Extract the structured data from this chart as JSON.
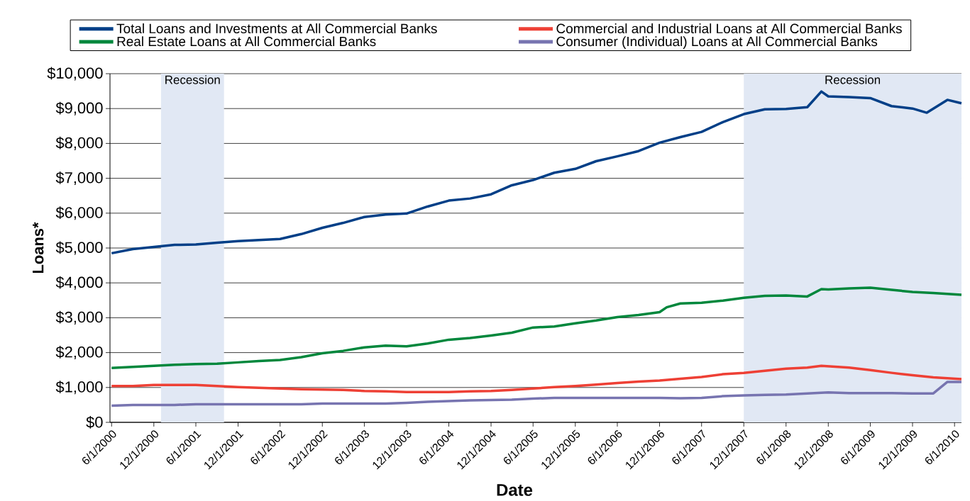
{
  "chart_data": {
    "type": "line",
    "xlabel": "Date",
    "ylabel": "Loans*",
    "xlim": [
      "2000-05-25",
      "2010-07-01"
    ],
    "xticks": [
      {
        "value": "2000-06-01",
        "label": "6/1/2000"
      },
      {
        "value": "2000-12-01",
        "label": "12/1/2000"
      },
      {
        "value": "2001-06-01",
        "label": "6/1/2001"
      },
      {
        "value": "2001-12-01",
        "label": "12/1/2001"
      },
      {
        "value": "2002-06-01",
        "label": "6/1/2002"
      },
      {
        "value": "2002-12-01",
        "label": "12/1/2002"
      },
      {
        "value": "2003-06-01",
        "label": "6/1/2003"
      },
      {
        "value": "2003-12-01",
        "label": "12/1/2003"
      },
      {
        "value": "2004-06-01",
        "label": "6/1/2004"
      },
      {
        "value": "2004-12-01",
        "label": "12/1/2004"
      },
      {
        "value": "2005-06-01",
        "label": "6/1/2005"
      },
      {
        "value": "2005-12-01",
        "label": "12/1/2005"
      },
      {
        "value": "2006-06-01",
        "label": "6/1/2006"
      },
      {
        "value": "2006-12-01",
        "label": "12/1/2006"
      },
      {
        "value": "2007-06-01",
        "label": "6/1/2007"
      },
      {
        "value": "2007-12-01",
        "label": "12/1/2007"
      },
      {
        "value": "2008-06-01",
        "label": "6/1/2008"
      },
      {
        "value": "2008-12-01",
        "label": "12/1/2008"
      },
      {
        "value": "2009-06-01",
        "label": "6/1/2009"
      },
      {
        "value": "2009-12-01",
        "label": "12/1/2009"
      },
      {
        "value": "2010-06-01",
        "label": "6/1/2010"
      }
    ],
    "ylim": [
      0,
      10000
    ],
    "yticks": [
      {
        "value": 0,
        "label": "$0"
      },
      {
        "value": 1000,
        "label": "$1,000"
      },
      {
        "value": 2000,
        "label": "$2,000"
      },
      {
        "value": 3000,
        "label": "$3,000"
      },
      {
        "value": 4000,
        "label": "$4,000"
      },
      {
        "value": 5000,
        "label": "$5,000"
      },
      {
        "value": 6000,
        "label": "$6,000"
      },
      {
        "value": 7000,
        "label": "$7,000"
      },
      {
        "value": 8000,
        "label": "$8,000"
      },
      {
        "value": 9000,
        "label": "$9,000"
      },
      {
        "value": 10000,
        "label": "$10,000"
      }
    ],
    "grid": "y",
    "legend": "top",
    "bands": [
      {
        "axis": "x",
        "from": "2001-01",
        "to": "2001-10",
        "label": "Recession",
        "color": "#e1e8f4"
      },
      {
        "axis": "x",
        "from": "2007-12",
        "to": "2010-07",
        "label": "Recession",
        "color": "#e1e8f4"
      }
    ],
    "series": [
      {
        "name": "Total Loans and Investments at All Commercial Banks",
        "color": "#003f87",
        "x": [
          "2000-06",
          "2000-09",
          "2000-12",
          "2001-03",
          "2001-06",
          "2001-09",
          "2001-12",
          "2002-03",
          "2002-06",
          "2002-09",
          "2002-12",
          "2003-03",
          "2003-06",
          "2003-09",
          "2003-12",
          "2004-03",
          "2004-06",
          "2004-09",
          "2004-12",
          "2005-03",
          "2005-06",
          "2005-09",
          "2005-12",
          "2006-03",
          "2006-06",
          "2006-09",
          "2006-12",
          "2007-03",
          "2007-06",
          "2007-09",
          "2007-12",
          "2008-03",
          "2008-06",
          "2008-09",
          "2008-11",
          "2008-12",
          "2009-03",
          "2009-06",
          "2009-09",
          "2009-12",
          "2010-02",
          "2010-05",
          "2010-07"
        ],
        "values": [
          4850,
          4970,
          5030,
          5090,
          5100,
          5150,
          5200,
          5230,
          5260,
          5400,
          5580,
          5720,
          5890,
          5960,
          5990,
          6190,
          6360,
          6420,
          6540,
          6800,
          6950,
          7160,
          7270,
          7490,
          7630,
          7780,
          8020,
          8180,
          8330,
          8610,
          8840,
          8980,
          8990,
          9040,
          9490,
          9350,
          9330,
          9300,
          9070,
          9000,
          8880,
          9250,
          9150
        ]
      },
      {
        "name": "Commercial and Industrial Loans at All Commercial Banks",
        "color": "#ee4035",
        "x": [
          "2000-06",
          "2000-09",
          "2000-12",
          "2001-03",
          "2001-06",
          "2001-09",
          "2001-12",
          "2002-03",
          "2002-06",
          "2002-09",
          "2002-12",
          "2003-03",
          "2003-06",
          "2003-09",
          "2003-12",
          "2004-03",
          "2004-06",
          "2004-09",
          "2004-12",
          "2005-03",
          "2005-06",
          "2005-09",
          "2005-12",
          "2006-03",
          "2006-06",
          "2006-09",
          "2006-12",
          "2007-03",
          "2007-06",
          "2007-09",
          "2007-12",
          "2008-03",
          "2008-06",
          "2008-09",
          "2008-11",
          "2009-03",
          "2009-06",
          "2009-09",
          "2009-12",
          "2010-03",
          "2010-07"
        ],
        "values": [
          1040,
          1040,
          1070,
          1070,
          1070,
          1040,
          1010,
          990,
          970,
          950,
          940,
          930,
          900,
          890,
          870,
          870,
          870,
          890,
          900,
          930,
          970,
          1010,
          1040,
          1080,
          1130,
          1170,
          1200,
          1250,
          1300,
          1380,
          1420,
          1480,
          1540,
          1570,
          1620,
          1570,
          1500,
          1420,
          1350,
          1290,
          1240
        ]
      },
      {
        "name": "Real Estate Loans at All Commercial Banks",
        "color": "#00873c",
        "x": [
          "2000-06",
          "2000-09",
          "2000-12",
          "2001-03",
          "2001-06",
          "2001-09",
          "2001-12",
          "2002-03",
          "2002-06",
          "2002-09",
          "2002-12",
          "2003-03",
          "2003-06",
          "2003-09",
          "2003-12",
          "2004-03",
          "2004-06",
          "2004-09",
          "2004-12",
          "2005-03",
          "2005-06",
          "2005-09",
          "2005-12",
          "2006-03",
          "2006-06",
          "2006-09",
          "2006-12",
          "2007-01",
          "2007-03",
          "2007-06",
          "2007-09",
          "2007-12",
          "2008-03",
          "2008-06",
          "2008-09",
          "2008-11",
          "2008-12",
          "2009-03",
          "2009-06",
          "2009-09",
          "2009-12",
          "2010-03",
          "2010-07"
        ],
        "values": [
          1560,
          1590,
          1620,
          1650,
          1670,
          1680,
          1720,
          1760,
          1790,
          1870,
          1980,
          2050,
          2150,
          2200,
          2180,
          2260,
          2370,
          2420,
          2490,
          2570,
          2720,
          2750,
          2840,
          2920,
          3020,
          3080,
          3160,
          3300,
          3410,
          3430,
          3490,
          3570,
          3630,
          3640,
          3610,
          3820,
          3810,
          3840,
          3860,
          3800,
          3740,
          3710,
          3660
        ]
      },
      {
        "name": "Consumer (Individual) Loans at All Commercial Banks",
        "color": "#7774b0",
        "x": [
          "2000-06",
          "2000-09",
          "2000-12",
          "2001-03",
          "2001-06",
          "2001-09",
          "2001-12",
          "2002-03",
          "2002-06",
          "2002-09",
          "2002-12",
          "2003-03",
          "2003-06",
          "2003-09",
          "2003-12",
          "2004-03",
          "2004-06",
          "2004-09",
          "2004-12",
          "2005-03",
          "2005-06",
          "2005-09",
          "2005-12",
          "2006-03",
          "2006-06",
          "2006-09",
          "2006-12",
          "2007-03",
          "2007-06",
          "2007-09",
          "2007-12",
          "2008-03",
          "2008-06",
          "2008-09",
          "2008-12",
          "2009-03",
          "2009-06",
          "2009-09",
          "2009-12",
          "2010-03",
          "2010-05",
          "2010-07"
        ],
        "values": [
          480,
          500,
          500,
          500,
          520,
          520,
          520,
          520,
          520,
          520,
          540,
          540,
          540,
          540,
          560,
          590,
          610,
          630,
          640,
          650,
          680,
          700,
          700,
          700,
          700,
          700,
          700,
          690,
          700,
          750,
          770,
          790,
          800,
          830,
          860,
          840,
          840,
          840,
          830,
          830,
          1160,
          1160
        ]
      }
    ]
  }
}
